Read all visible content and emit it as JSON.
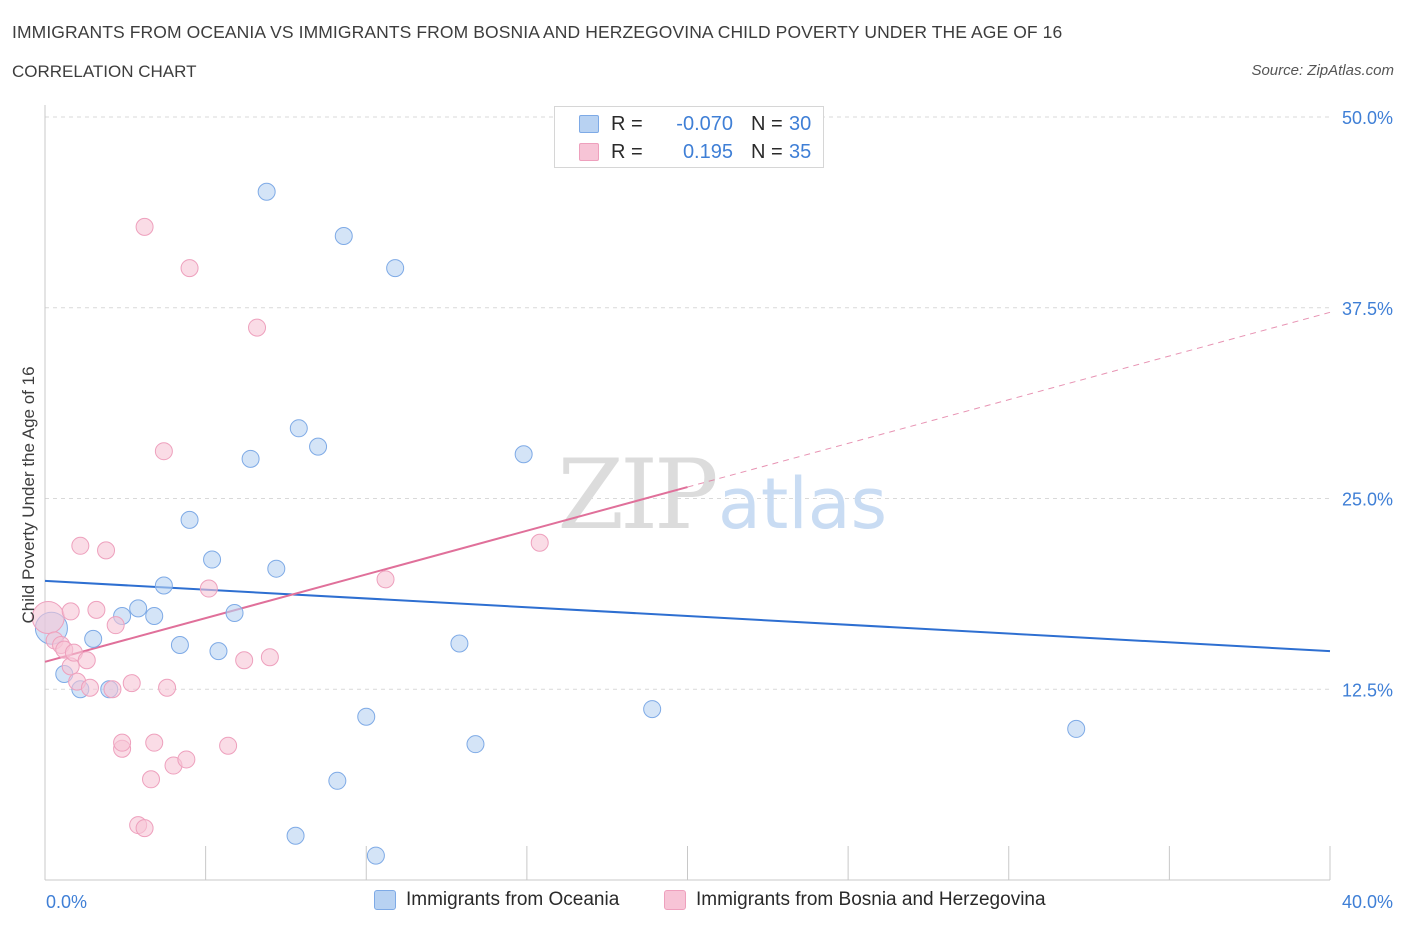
{
  "title": "IMMIGRANTS FROM OCEANIA VS IMMIGRANTS FROM BOSNIA AND HERZEGOVINA CHILD POVERTY UNDER THE AGE OF 16",
  "subtitle": "CORRELATION CHART",
  "source": "Source: ZipAtlas.com",
  "watermark": {
    "zip": "ZIP",
    "atlas": "atlas"
  },
  "colors": {
    "blue_fill": "#b8d2f2",
    "blue_stroke": "#7eaae6",
    "blue_line": "#2e6fd1",
    "pink_fill": "#f7c4d6",
    "pink_stroke": "#eea0bd",
    "pink_line": "#e0709a",
    "axis_text": "#3f7fd6",
    "grid": "#d9d9d9"
  },
  "legend": {
    "rows": [
      {
        "series": "oceania",
        "r_label": "R =",
        "r_value": "-0.070",
        "n_label": "N =",
        "n_value": "30"
      },
      {
        "series": "bosnia",
        "r_label": "R =",
        "r_value": "0.195",
        "n_label": "N =",
        "n_value": "35"
      }
    ]
  },
  "bottom_legend": {
    "oceania": "Immigrants from Oceania",
    "bosnia": "Immigrants from Bosnia and Herzegovina"
  },
  "chart_data": {
    "type": "scatter",
    "title": "IMMIGRANTS FROM OCEANIA VS IMMIGRANTS FROM BOSNIA AND HERZEGOVINA CHILD POVERTY UNDER THE AGE OF 16",
    "xlabel": "",
    "ylabel": "Child Poverty Under the Age of 16",
    "xlim": [
      0,
      40
    ],
    "ylim": [
      0,
      50
    ],
    "x_tick_labels": {
      "min": "0.0%",
      "max": "40.0%"
    },
    "y_ticks": [
      {
        "value": 50,
        "label": "50.0%"
      },
      {
        "value": 37.5,
        "label": "37.5%"
      },
      {
        "value": 25,
        "label": "25.0%"
      },
      {
        "value": 12.5,
        "label": "12.5%"
      }
    ],
    "series": [
      {
        "name": "Immigrants from Oceania",
        "key": "oceania",
        "r": -0.07,
        "n": 30,
        "points": [
          [
            0.2,
            16.5
          ],
          [
            0.6,
            13.5
          ],
          [
            1.1,
            12.5
          ],
          [
            1.5,
            15.8
          ],
          [
            2.0,
            12.5
          ],
          [
            2.4,
            17.3
          ],
          [
            2.9,
            17.8
          ],
          [
            3.4,
            17.3
          ],
          [
            3.7,
            19.3
          ],
          [
            4.2,
            15.4
          ],
          [
            4.5,
            23.6
          ],
          [
            5.2,
            21.0
          ],
          [
            5.4,
            15.0
          ],
          [
            5.9,
            17.5
          ],
          [
            6.4,
            27.6
          ],
          [
            6.9,
            45.1
          ],
          [
            7.2,
            20.4
          ],
          [
            7.8,
            2.9
          ],
          [
            7.9,
            29.6
          ],
          [
            8.5,
            28.4
          ],
          [
            9.1,
            6.5
          ],
          [
            9.3,
            42.2
          ],
          [
            10.0,
            10.7
          ],
          [
            10.3,
            1.6
          ],
          [
            10.9,
            40.1
          ],
          [
            12.9,
            15.5
          ],
          [
            13.4,
            8.9
          ],
          [
            14.9,
            27.9
          ],
          [
            18.9,
            11.2
          ],
          [
            32.1,
            9.9
          ]
        ],
        "trend": {
          "x0": 0,
          "y0": 19.6,
          "x1": 40,
          "y1": 15.0,
          "solid_until": 40
        }
      },
      {
        "name": "Immigrants from Bosnia and Herzegovina",
        "key": "bosnia",
        "r": 0.195,
        "n": 35,
        "points": [
          [
            0.1,
            17.2
          ],
          [
            0.3,
            15.7
          ],
          [
            0.5,
            15.4
          ],
          [
            0.6,
            15.1
          ],
          [
            0.8,
            14.0
          ],
          [
            0.8,
            17.6
          ],
          [
            0.9,
            14.9
          ],
          [
            1.0,
            13.0
          ],
          [
            1.1,
            21.9
          ],
          [
            1.3,
            14.4
          ],
          [
            1.4,
            12.6
          ],
          [
            1.6,
            17.7
          ],
          [
            1.9,
            21.6
          ],
          [
            2.1,
            12.5
          ],
          [
            2.2,
            16.7
          ],
          [
            2.4,
            8.6
          ],
          [
            2.4,
            9.0
          ],
          [
            2.7,
            12.9
          ],
          [
            2.9,
            3.6
          ],
          [
            3.1,
            3.4
          ],
          [
            3.1,
            42.8
          ],
          [
            3.3,
            6.6
          ],
          [
            3.4,
            9.0
          ],
          [
            3.7,
            28.1
          ],
          [
            3.8,
            12.6
          ],
          [
            4.0,
            7.5
          ],
          [
            4.4,
            7.9
          ],
          [
            4.5,
            40.1
          ],
          [
            5.1,
            19.1
          ],
          [
            5.7,
            8.8
          ],
          [
            6.2,
            14.4
          ],
          [
            6.6,
            36.2
          ],
          [
            7.0,
            14.6
          ],
          [
            10.6,
            19.7
          ],
          [
            15.4,
            22.1
          ]
        ],
        "trend": {
          "x0": 0,
          "y0": 14.3,
          "x1": 40,
          "y1": 37.2,
          "solid_until": 20
        }
      }
    ]
  }
}
